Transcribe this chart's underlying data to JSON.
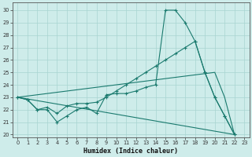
{
  "xlabel": "Humidex (Indice chaleur)",
  "background_color": "#ceecea",
  "grid_color": "#a8d5d1",
  "line_color": "#1a7a6e",
  "xlim": [
    -0.5,
    23.5
  ],
  "ylim": [
    19.8,
    30.6
  ],
  "yticks": [
    20,
    21,
    22,
    23,
    24,
    25,
    26,
    27,
    28,
    29,
    30
  ],
  "xticks": [
    0,
    1,
    2,
    3,
    4,
    5,
    6,
    7,
    8,
    9,
    10,
    11,
    12,
    13,
    14,
    15,
    16,
    17,
    18,
    19,
    20,
    21,
    22,
    23
  ],
  "line1_x": [
    0,
    1,
    2,
    3,
    4,
    5,
    6,
    7,
    8,
    9,
    10,
    11,
    12,
    13,
    14,
    15,
    16,
    17,
    18,
    19,
    20,
    21,
    22
  ],
  "line1_y": [
    23.0,
    22.8,
    22.0,
    22.0,
    21.0,
    21.5,
    22.0,
    22.2,
    21.7,
    23.2,
    23.3,
    23.3,
    23.5,
    23.8,
    24.0,
    30.0,
    30.0,
    29.0,
    27.5,
    25.0,
    23.0,
    21.5,
    20.0
  ],
  "line2_x": [
    0,
    1,
    2,
    3,
    4,
    5,
    6,
    7,
    8,
    9,
    10,
    11,
    12,
    13,
    14,
    15,
    16,
    17,
    18,
    19,
    20,
    21,
    22
  ],
  "line2_y": [
    23.0,
    22.8,
    22.0,
    22.2,
    21.7,
    22.3,
    22.5,
    22.5,
    22.6,
    23.0,
    23.5,
    24.0,
    24.5,
    25.0,
    25.5,
    26.0,
    26.5,
    27.0,
    27.5,
    25.0,
    23.0,
    21.5,
    20.0
  ],
  "line3_x": [
    0,
    20,
    21,
    22
  ],
  "line3_y": [
    23.0,
    25.0,
    23.0,
    20.0
  ],
  "line4_x": [
    0,
    22
  ],
  "line4_y": [
    23.0,
    20.0
  ]
}
